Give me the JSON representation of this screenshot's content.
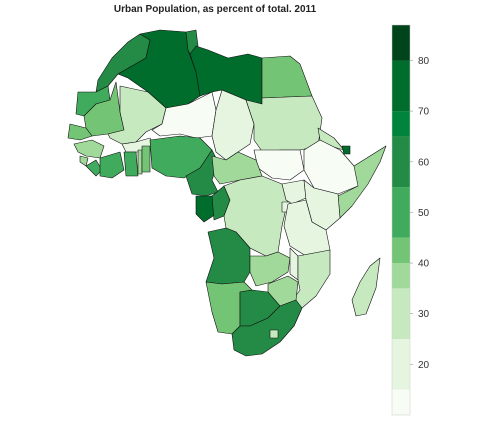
{
  "title": "Urban Population, as percent of total. 2011",
  "legend": {
    "min": 10,
    "max": 87,
    "ticks": [
      "20",
      "30",
      "40",
      "50",
      "60",
      "70",
      "80"
    ],
    "bins": [
      {
        "from": 10,
        "to": 15,
        "color": "#f7fcf5"
      },
      {
        "from": 15,
        "to": 25,
        "color": "#e5f5e0"
      },
      {
        "from": 25,
        "to": 35,
        "color": "#c7e9c0"
      },
      {
        "from": 35,
        "to": 40,
        "color": "#a1d99b"
      },
      {
        "from": 40,
        "to": 45,
        "color": "#74c476"
      },
      {
        "from": 45,
        "to": 55,
        "color": "#41ab5d"
      },
      {
        "from": 55,
        "to": 65,
        "color": "#238b45"
      },
      {
        "from": 65,
        "to": 70,
        "color": "#00843d"
      },
      {
        "from": 70,
        "to": 80,
        "color": "#006d2c"
      },
      {
        "from": 80,
        "to": 87,
        "color": "#00441b"
      }
    ]
  }
}
